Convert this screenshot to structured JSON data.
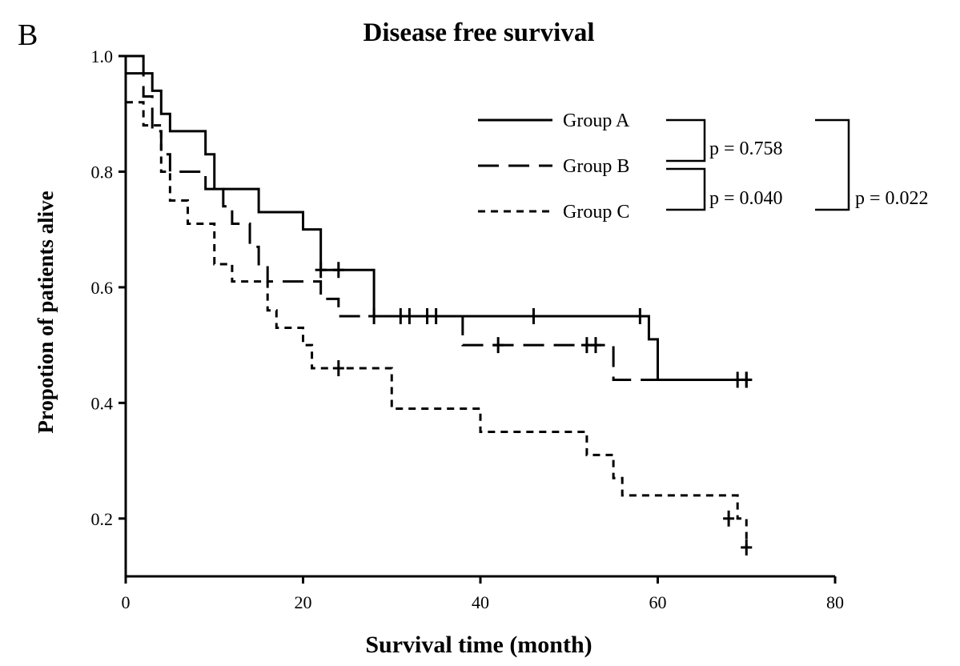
{
  "panel_label": "B",
  "chart_data": {
    "type": "line",
    "subtype": "kaplan-meier step curves",
    "title": "Disease free survival",
    "xlabel": "Survival time (month)",
    "ylabel": "Propotion of patients alive",
    "xlim": [
      0,
      80
    ],
    "ylim": [
      0.1,
      1.0
    ],
    "x_ticks": [
      0,
      20,
      40,
      60,
      80
    ],
    "x_tick_labels": [
      "0",
      "20",
      "40",
      "60",
      "80"
    ],
    "y_ticks": [
      0.2,
      0.4,
      0.6,
      0.8,
      1.0
    ],
    "y_tick_labels": [
      "0.2",
      "0.4",
      "0.6",
      "0.8",
      "1.0"
    ],
    "grid": false,
    "legend_position": "top-right",
    "series": [
      {
        "name": "Group A",
        "line_style": "solid",
        "steps": [
          [
            0,
            1.0
          ],
          [
            2,
            0.97
          ],
          [
            3,
            0.94
          ],
          [
            4,
            0.9
          ],
          [
            5,
            0.87
          ],
          [
            9,
            0.83
          ],
          [
            10,
            0.77
          ],
          [
            15,
            0.73
          ],
          [
            20,
            0.7
          ],
          [
            22,
            0.63
          ],
          [
            28,
            0.55
          ],
          [
            58,
            0.55
          ],
          [
            59,
            0.51
          ],
          [
            60,
            0.44
          ],
          [
            70,
            0.44
          ]
        ],
        "censored": [
          [
            22,
            0.63
          ],
          [
            24,
            0.63
          ],
          [
            32,
            0.55
          ],
          [
            35,
            0.55
          ],
          [
            46,
            0.55
          ],
          [
            58,
            0.55
          ],
          [
            70,
            0.44
          ]
        ]
      },
      {
        "name": "Group B",
        "line_style": "dashed",
        "steps": [
          [
            0,
            0.97
          ],
          [
            2,
            0.93
          ],
          [
            3,
            0.87
          ],
          [
            4,
            0.83
          ],
          [
            5,
            0.8
          ],
          [
            9,
            0.77
          ],
          [
            11,
            0.74
          ],
          [
            12,
            0.71
          ],
          [
            14,
            0.67
          ],
          [
            15,
            0.64
          ],
          [
            16,
            0.61
          ],
          [
            22,
            0.58
          ],
          [
            24,
            0.55
          ],
          [
            38,
            0.5
          ],
          [
            55,
            0.44
          ],
          [
            70,
            0.44
          ]
        ],
        "censored": [
          [
            28,
            0.55
          ],
          [
            31,
            0.55
          ],
          [
            34,
            0.55
          ],
          [
            42,
            0.5
          ],
          [
            52,
            0.5
          ],
          [
            53,
            0.5
          ],
          [
            69,
            0.44
          ],
          [
            70,
            0.44
          ]
        ]
      },
      {
        "name": "Group C",
        "line_style": "dotted",
        "steps": [
          [
            0,
            0.92
          ],
          [
            2,
            0.88
          ],
          [
            4,
            0.8
          ],
          [
            5,
            0.75
          ],
          [
            7,
            0.71
          ],
          [
            10,
            0.64
          ],
          [
            12,
            0.61
          ],
          [
            16,
            0.56
          ],
          [
            17,
            0.53
          ],
          [
            20,
            0.5
          ],
          [
            21,
            0.46
          ],
          [
            30,
            0.39
          ],
          [
            40,
            0.35
          ],
          [
            52,
            0.31
          ],
          [
            55,
            0.27
          ],
          [
            56,
            0.24
          ],
          [
            69,
            0.2
          ],
          [
            70,
            0.15
          ]
        ],
        "censored": [
          [
            24,
            0.46
          ],
          [
            68,
            0.2
          ],
          [
            70,
            0.15
          ]
        ]
      }
    ],
    "annotations": [
      {
        "text": "p = 0.758",
        "between": [
          "Group A",
          "Group B"
        ]
      },
      {
        "text": "p = 0.040",
        "between": [
          "Group B",
          "Group C"
        ]
      },
      {
        "text": "p = 0.022",
        "between": [
          "Group A",
          "Group C"
        ]
      }
    ]
  }
}
